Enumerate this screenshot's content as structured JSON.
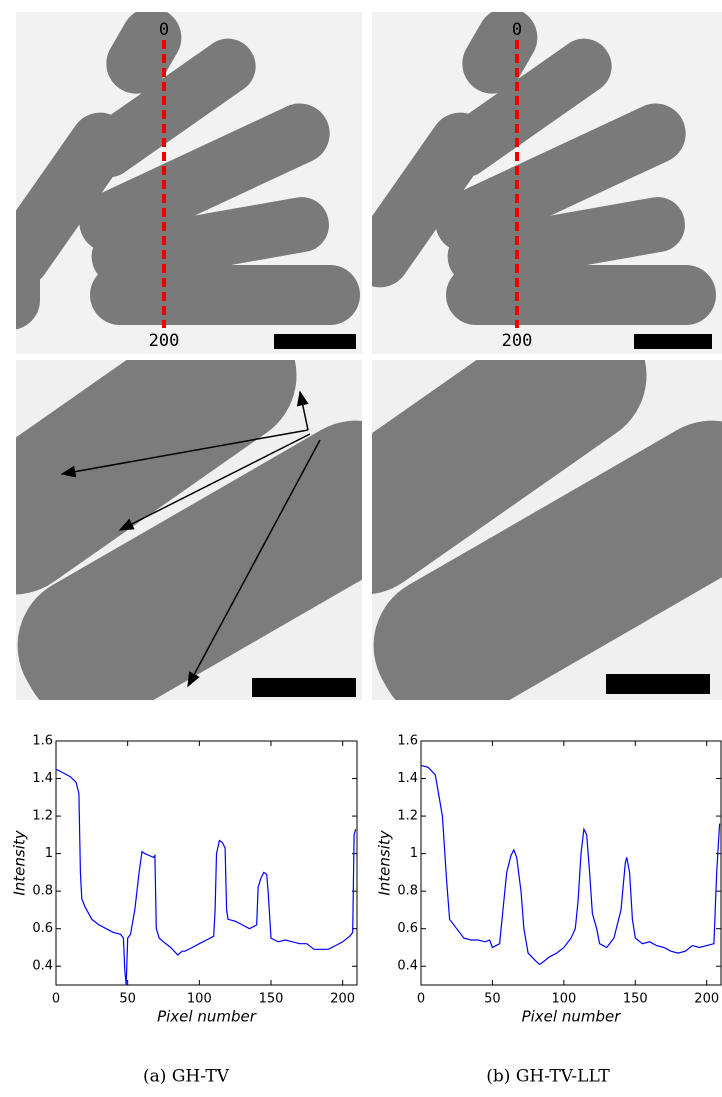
{
  "chart_data": [
    {
      "type": "line",
      "xlabel": "Pixel number",
      "ylabel": "Intensity",
      "color": "#0000ff",
      "xlim": [
        0,
        210
      ],
      "ylim": [
        0.3,
        1.6
      ],
      "xticks": [
        0,
        50,
        100,
        150,
        200
      ],
      "yticks": [
        0.4,
        0.6,
        0.8,
        1,
        1.2,
        1.4,
        1.6
      ],
      "x": [
        0,
        5,
        10,
        14,
        16,
        17,
        18,
        20,
        25,
        30,
        35,
        40,
        45,
        47,
        48,
        49,
        50,
        52,
        55,
        58,
        60,
        62,
        65,
        68,
        69,
        70,
        72,
        75,
        80,
        85,
        88,
        90,
        95,
        100,
        105,
        110,
        111,
        112,
        114,
        116,
        118,
        119,
        120,
        125,
        130,
        135,
        140,
        141,
        143,
        145,
        147,
        148,
        150,
        155,
        160,
        165,
        170,
        175,
        180,
        185,
        190,
        195,
        200,
        205,
        207,
        208,
        209
      ],
      "values": [
        1.45,
        1.43,
        1.41,
        1.38,
        1.32,
        0.9,
        0.76,
        0.72,
        0.65,
        0.62,
        0.6,
        0.58,
        0.57,
        0.55,
        0.38,
        0.3,
        0.55,
        0.57,
        0.7,
        0.9,
        1.01,
        1.0,
        0.99,
        0.98,
        0.99,
        0.6,
        0.55,
        0.53,
        0.5,
        0.46,
        0.48,
        0.48,
        0.5,
        0.52,
        0.54,
        0.56,
        0.7,
        1.0,
        1.07,
        1.06,
        1.03,
        0.7,
        0.65,
        0.64,
        0.62,
        0.6,
        0.62,
        0.82,
        0.87,
        0.9,
        0.89,
        0.8,
        0.55,
        0.53,
        0.54,
        0.53,
        0.52,
        0.52,
        0.49,
        0.49,
        0.49,
        0.51,
        0.53,
        0.56,
        0.58,
        1.1,
        1.13
      ]
    },
    {
      "type": "line",
      "xlabel": "Pixel number",
      "ylabel": "Intensity",
      "color": "#0000ff",
      "xlim": [
        0,
        210
      ],
      "ylim": [
        0.3,
        1.6
      ],
      "xticks": [
        0,
        50,
        100,
        150,
        200
      ],
      "yticks": [
        0.4,
        0.6,
        0.8,
        1,
        1.2,
        1.4,
        1.6
      ],
      "x": [
        0,
        5,
        10,
        15,
        18,
        20,
        25,
        30,
        35,
        40,
        45,
        48,
        50,
        55,
        58,
        60,
        63,
        65,
        67,
        70,
        72,
        75,
        80,
        83,
        85,
        90,
        95,
        100,
        105,
        108,
        110,
        112,
        114,
        116,
        118,
        120,
        123,
        125,
        130,
        135,
        140,
        143,
        144,
        146,
        148,
        150,
        155,
        160,
        165,
        170,
        175,
        180,
        185,
        190,
        195,
        200,
        205,
        207,
        209
      ],
      "values": [
        1.47,
        1.46,
        1.42,
        1.2,
        0.85,
        0.65,
        0.6,
        0.55,
        0.54,
        0.54,
        0.53,
        0.54,
        0.5,
        0.52,
        0.75,
        0.9,
        0.99,
        1.02,
        0.98,
        0.8,
        0.6,
        0.47,
        0.43,
        0.41,
        0.42,
        0.45,
        0.47,
        0.5,
        0.55,
        0.6,
        0.75,
        1.0,
        1.13,
        1.1,
        0.9,
        0.68,
        0.6,
        0.52,
        0.5,
        0.55,
        0.7,
        0.95,
        0.98,
        0.9,
        0.65,
        0.55,
        0.52,
        0.53,
        0.51,
        0.5,
        0.48,
        0.47,
        0.48,
        0.51,
        0.5,
        0.51,
        0.52,
        0.9,
        1.16
      ]
    }
  ],
  "panels": [
    {
      "top_label": "0",
      "bottom_label": "200"
    },
    {
      "top_label": "0",
      "bottom_label": "200"
    }
  ],
  "captions": [
    "(a) GH-TV",
    "(b) GH-TV-LLT"
  ]
}
